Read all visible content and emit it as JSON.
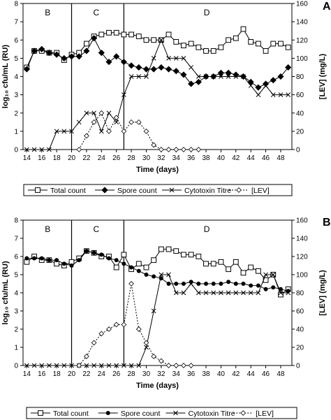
{
  "chart_data": [
    {
      "type": "line",
      "panel_label": "A",
      "xlabel": "Time (days)",
      "ylabel": "log₁₀ cfu/mL (RU)",
      "y2label": "[LEV] (mg/L)",
      "xlim": [
        13.5,
        49.5
      ],
      "ylim": [
        0,
        8
      ],
      "y2lim": [
        0,
        160
      ],
      "xticks": [
        14,
        16,
        18,
        20,
        22,
        24,
        26,
        28,
        30,
        32,
        34,
        36,
        38,
        40,
        42,
        44,
        46,
        48
      ],
      "yticks": [
        0,
        1,
        2,
        3,
        4,
        5,
        6,
        7,
        8
      ],
      "y2ticks": [
        0,
        20,
        40,
        60,
        80,
        100,
        120,
        140,
        160
      ],
      "phase_lines": [
        20,
        27
      ],
      "phases": [
        {
          "label": "B",
          "x": 16.8
        },
        {
          "label": "C",
          "x": 23.3
        },
        {
          "label": "D",
          "x": 38.1
        }
      ],
      "legend_position": "bottom",
      "series": [
        {
          "name": "Total count",
          "axis": "left",
          "marker": "square",
          "dash": "solid",
          "x": [
            14,
            15,
            16,
            17,
            18,
            19,
            20,
            21,
            22,
            23,
            24,
            25,
            26,
            27,
            28,
            29,
            30,
            31,
            32,
            33,
            34,
            35,
            36,
            37,
            38,
            39,
            40,
            41,
            42,
            43,
            44,
            45,
            46,
            47,
            48,
            49
          ],
          "y": [
            4.5,
            5.4,
            5.4,
            5.3,
            5.3,
            4.9,
            5.2,
            5.3,
            5.8,
            6.2,
            6.3,
            6.4,
            6.4,
            6.3,
            6.3,
            6.2,
            6.0,
            6.0,
            6.0,
            6.3,
            5.9,
            5.7,
            5.8,
            5.6,
            5.4,
            5.4,
            5.6,
            6.0,
            6.1,
            6.6,
            5.9,
            5.8,
            5.4,
            5.8,
            5.8,
            5.6
          ]
        },
        {
          "name": "Spore count",
          "axis": "left",
          "marker": "diamond",
          "dash": "solid",
          "x": [
            14,
            15,
            16,
            17,
            18,
            19,
            20,
            21,
            22,
            23,
            24,
            25,
            26,
            27,
            28,
            29,
            30,
            31,
            32,
            33,
            34,
            35,
            36,
            37,
            38,
            39,
            40,
            41,
            42,
            43,
            44,
            45,
            46,
            47,
            48,
            49
          ],
          "y": [
            4.4,
            5.4,
            5.5,
            5.3,
            5.2,
            5.0,
            5.1,
            5.1,
            5.4,
            6.1,
            5.3,
            4.8,
            5.1,
            4.8,
            4.6,
            4.5,
            4.4,
            4.4,
            4.5,
            4.4,
            4.3,
            4.1,
            3.6,
            3.7,
            4.0,
            4.0,
            4.2,
            4.2,
            4.1,
            4.0,
            3.7,
            3.4,
            3.6,
            3.8,
            4.0,
            4.5
          ]
        },
        {
          "name": "Cytotoxin Titre",
          "axis": "right",
          "marker": "x",
          "dash": "solid",
          "x": [
            14,
            15,
            16,
            17,
            18,
            19,
            20,
            21,
            22,
            23,
            24,
            25,
            26,
            27,
            28,
            29,
            30,
            31,
            32,
            33,
            34,
            35,
            36,
            37,
            38,
            39,
            40,
            41,
            42,
            43,
            44,
            45,
            46,
            47,
            48,
            49
          ],
          "y": [
            0,
            0,
            0,
            0,
            20,
            20,
            20,
            30,
            40,
            40,
            20,
            40,
            30,
            60,
            80,
            80,
            80,
            100,
            120,
            100,
            100,
            100,
            90,
            80,
            80,
            80,
            80,
            80,
            80,
            80,
            70,
            60,
            70,
            60,
            60,
            60
          ]
        },
        {
          "name": "[LEV]",
          "axis": "right",
          "marker": "open-diamond",
          "dash": "dotted",
          "x": [
            21,
            22,
            23,
            24,
            25,
            26,
            27,
            28,
            29,
            30,
            31,
            32,
            33,
            34,
            35,
            36,
            37
          ],
          "y": [
            0,
            15,
            30,
            40,
            20,
            35,
            20,
            30,
            30,
            20,
            5,
            0,
            0,
            0,
            0,
            0,
            0
          ]
        }
      ]
    },
    {
      "type": "line",
      "panel_label": "B",
      "xlabel": "Time (days)",
      "ylabel": "log₁₀ cfu/mL (RU)",
      "y2label": "[LEV] (mg/L)",
      "xlim": [
        13.5,
        49.5
      ],
      "ylim": [
        0,
        8
      ],
      "y2lim": [
        0,
        160
      ],
      "xticks": [
        14,
        16,
        18,
        20,
        22,
        24,
        26,
        28,
        30,
        32,
        34,
        36,
        38,
        40,
        42,
        44,
        46,
        48
      ],
      "yticks": [
        0,
        1,
        2,
        3,
        4,
        5,
        6,
        7,
        8
      ],
      "y2ticks": [
        0,
        20,
        40,
        60,
        80,
        100,
        120,
        140,
        160
      ],
      "phase_lines": [
        20,
        27
      ],
      "phases": [
        {
          "label": "B",
          "x": 16.8
        },
        {
          "label": "C",
          "x": 23.3
        },
        {
          "label": "D",
          "x": 38.1
        }
      ],
      "legend_position": "bottom",
      "series": [
        {
          "name": "Total count",
          "axis": "left",
          "marker": "square",
          "dash": "solid",
          "x": [
            14,
            15,
            16,
            17,
            18,
            19,
            20,
            21,
            22,
            23,
            24,
            25,
            26,
            27,
            28,
            29,
            30,
            31,
            32,
            33,
            34,
            35,
            36,
            37,
            38,
            39,
            40,
            41,
            42,
            43,
            44,
            45,
            46,
            47,
            48,
            49
          ],
          "y": [
            5.7,
            6.0,
            5.8,
            5.8,
            5.6,
            5.5,
            5.7,
            5.9,
            6.3,
            6.2,
            6.0,
            6.0,
            5.4,
            6.1,
            5.3,
            5.6,
            5.4,
            5.8,
            6.4,
            6.4,
            6.3,
            6.1,
            6.1,
            6.0,
            5.6,
            5.6,
            5.7,
            5.3,
            5.7,
            5.1,
            5.4,
            5.2,
            4.7,
            5.0,
            3.9,
            4.2
          ]
        },
        {
          "name": "Spore count",
          "axis": "left",
          "marker": "filled-circle",
          "dash": "solid",
          "x": [
            14,
            15,
            16,
            17,
            18,
            19,
            20,
            21,
            22,
            23,
            24,
            25,
            26,
            27,
            28,
            29,
            30,
            31,
            32,
            33,
            34,
            35,
            36,
            37,
            38,
            39,
            40,
            41,
            42,
            43,
            44,
            45,
            46,
            47,
            48,
            49
          ],
          "y": [
            5.9,
            5.9,
            5.9,
            5.8,
            5.8,
            5.6,
            5.5,
            5.8,
            6.3,
            6.2,
            6.1,
            5.9,
            5.8,
            5.6,
            5.4,
            5.2,
            5.0,
            4.9,
            4.8,
            4.5,
            4.5,
            4.5,
            4.6,
            4.5,
            4.5,
            4.5,
            4.5,
            4.6,
            4.5,
            4.5,
            4.4,
            4.4,
            4.2,
            4.3,
            4.2,
            4.1
          ]
        },
        {
          "name": "Cytotoxin Titre",
          "axis": "right",
          "marker": "x",
          "dash": "solid",
          "x": [
            14,
            15,
            16,
            17,
            18,
            19,
            20,
            21,
            22,
            23,
            24,
            25,
            26,
            27,
            28,
            29,
            30,
            31,
            32,
            33,
            34,
            35,
            36,
            37,
            38,
            39,
            40,
            41,
            42,
            43,
            44,
            45,
            46,
            47,
            48,
            49
          ],
          "y": [
            0,
            0,
            0,
            0,
            0,
            0,
            0,
            0,
            0,
            0,
            0,
            0,
            0,
            0,
            0,
            0,
            20,
            60,
            100,
            100,
            80,
            80,
            90,
            80,
            80,
            80,
            80,
            80,
            80,
            80,
            80,
            80,
            100,
            100,
            80,
            80
          ]
        },
        {
          "name": "[LEV]",
          "axis": "right",
          "marker": "open-diamond",
          "dash": "dotted",
          "x": [
            21,
            22,
            23,
            24,
            25,
            26,
            27,
            28,
            29,
            30,
            31,
            32,
            33,
            34,
            35,
            36
          ],
          "y": [
            0,
            10,
            25,
            35,
            40,
            45,
            45,
            90,
            40,
            25,
            10,
            5,
            0,
            0,
            0,
            0
          ]
        }
      ]
    }
  ]
}
